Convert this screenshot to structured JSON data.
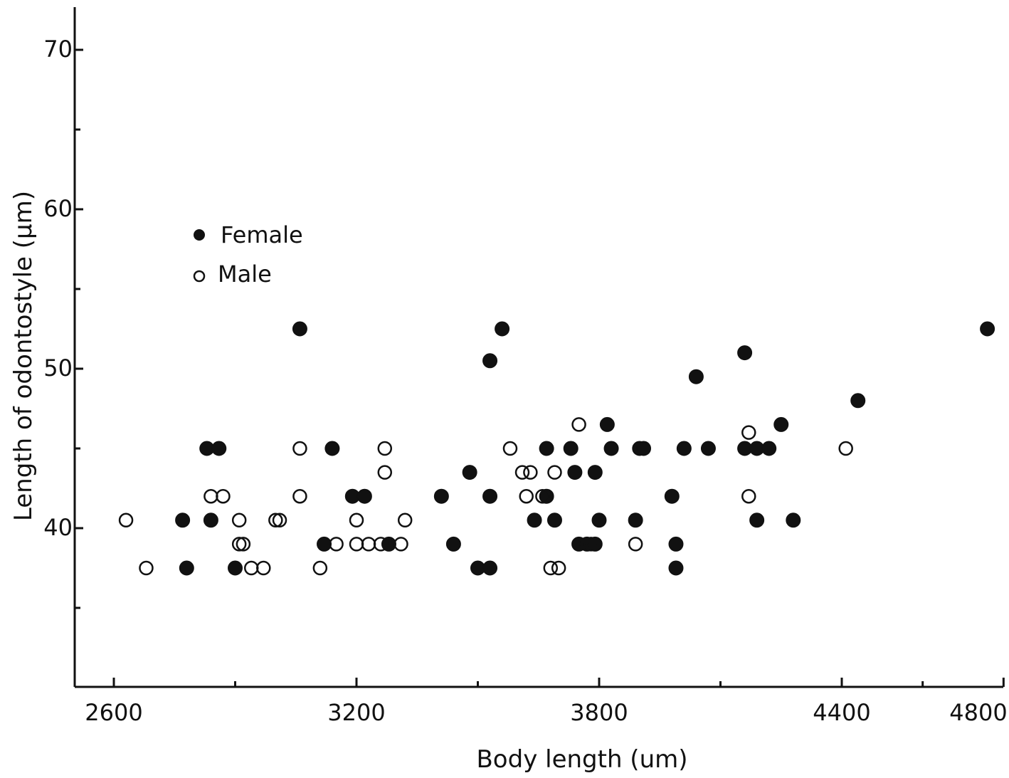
{
  "chart_data": {
    "type": "scatter",
    "xlabel": "Body length (um)",
    "ylabel": "Length of odontostyle (μm)",
    "xlim": [
      2500,
      4800
    ],
    "ylim": [
      30,
      74
    ],
    "x_ticks": [
      2600,
      3200,
      3800,
      4400,
      4800
    ],
    "x_tick_labels": [
      "2600",
      "3200",
      "3800",
      "4400",
      "4800"
    ],
    "y_ticks": [
      40,
      50,
      60,
      70
    ],
    "y_tick_labels": [
      "40",
      "50",
      "60",
      "70"
    ],
    "legend_position": "left",
    "colors": {
      "marker": "#111111",
      "axis": "#111111"
    },
    "series": [
      {
        "name": "Female",
        "marker": "filled-circle",
        "points": [
          [
            2770,
            40.5
          ],
          [
            2780,
            37.5
          ],
          [
            2830,
            45
          ],
          [
            2840,
            40.5
          ],
          [
            2860,
            45
          ],
          [
            2900,
            37.5
          ],
          [
            3060,
            52.5
          ],
          [
            3120,
            39
          ],
          [
            3140,
            45
          ],
          [
            3190,
            42
          ],
          [
            3220,
            42
          ],
          [
            3280,
            39
          ],
          [
            3410,
            42
          ],
          [
            3440,
            39
          ],
          [
            3480,
            43.5
          ],
          [
            3500,
            37.5
          ],
          [
            3530,
            42
          ],
          [
            3530,
            50.5
          ],
          [
            3530,
            37.5
          ],
          [
            3560,
            52.5
          ],
          [
            3640,
            40.5
          ],
          [
            3670,
            45
          ],
          [
            3670,
            42
          ],
          [
            3690,
            40.5
          ],
          [
            3730,
            45
          ],
          [
            3740,
            43.5
          ],
          [
            3750,
            39
          ],
          [
            3770,
            39
          ],
          [
            3790,
            39
          ],
          [
            3790,
            43.5
          ],
          [
            3800,
            40.5
          ],
          [
            3820,
            46.5
          ],
          [
            3830,
            45
          ],
          [
            3890,
            40.5
          ],
          [
            3900,
            45
          ],
          [
            3910,
            45
          ],
          [
            3980,
            42
          ],
          [
            3990,
            39
          ],
          [
            3990,
            37.5
          ],
          [
            4010,
            45
          ],
          [
            4040,
            49.5
          ],
          [
            4070,
            45
          ],
          [
            4160,
            51
          ],
          [
            4160,
            45
          ],
          [
            4190,
            45
          ],
          [
            4190,
            40.5
          ],
          [
            4220,
            45
          ],
          [
            4250,
            46.5
          ],
          [
            4280,
            40.5
          ],
          [
            4440,
            48
          ],
          [
            4760,
            52.5
          ]
        ]
      },
      {
        "name": "Male",
        "marker": "open-circle",
        "points": [
          [
            2630,
            40.5
          ],
          [
            2680,
            37.5
          ],
          [
            2840,
            42
          ],
          [
            2870,
            42
          ],
          [
            2910,
            40.5
          ],
          [
            2910,
            39
          ],
          [
            2920,
            39
          ],
          [
            2940,
            37.5
          ],
          [
            2970,
            37.5
          ],
          [
            3000,
            40.5
          ],
          [
            3010,
            40.5
          ],
          [
            3060,
            45
          ],
          [
            3060,
            42
          ],
          [
            3110,
            37.5
          ],
          [
            3150,
            39
          ],
          [
            3200,
            40.5
          ],
          [
            3200,
            39
          ],
          [
            3230,
            39
          ],
          [
            3260,
            39
          ],
          [
            3270,
            45
          ],
          [
            3270,
            43.5
          ],
          [
            3310,
            39
          ],
          [
            3320,
            40.5
          ],
          [
            3580,
            45
          ],
          [
            3610,
            43.5
          ],
          [
            3620,
            42
          ],
          [
            3630,
            43.5
          ],
          [
            3660,
            42
          ],
          [
            3680,
            37.5
          ],
          [
            3690,
            43.5
          ],
          [
            3700,
            37.5
          ],
          [
            3730,
            45
          ],
          [
            3750,
            46.5
          ],
          [
            3780,
            39
          ],
          [
            3890,
            39
          ],
          [
            4170,
            46
          ],
          [
            4170,
            42
          ],
          [
            4410,
            45
          ]
        ]
      }
    ]
  }
}
